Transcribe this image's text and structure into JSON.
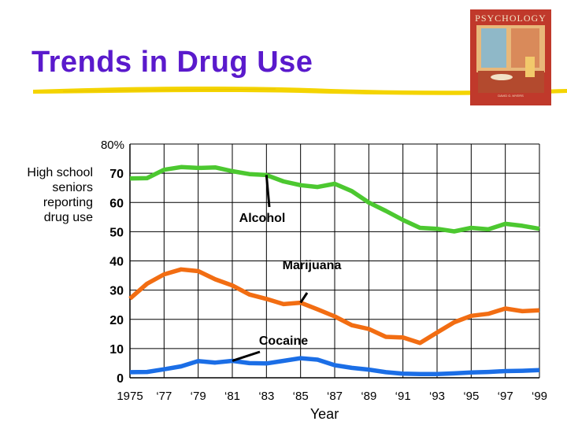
{
  "slide": {
    "title": "Trends in Drug Use",
    "underline_color": "#f4d400"
  },
  "book": {
    "cover_title": "PSYCHOLOGY",
    "cover_author": "DAVID G. MYERS",
    "cover_color": "#c0392b"
  },
  "chart_data": {
    "type": "line",
    "title": "",
    "ylabel_lines": [
      "High school",
      "seniors",
      "reporting",
      "drug use"
    ],
    "xlabel": "Year",
    "x": [
      1975,
      1976,
      1977,
      1978,
      1979,
      1980,
      1981,
      1982,
      1983,
      1984,
      1985,
      1986,
      1987,
      1988,
      1989,
      1990,
      1991,
      1992,
      1993,
      1994,
      1995,
      1996,
      1997,
      1998,
      1999
    ],
    "xlim": [
      1975,
      1999
    ],
    "ylim": [
      0,
      80
    ],
    "x_ticks": [
      {
        "value": 1975,
        "label": "1975"
      },
      {
        "value": 1977,
        "label": "‘77"
      },
      {
        "value": 1979,
        "label": "‘79"
      },
      {
        "value": 1981,
        "label": "‘81"
      },
      {
        "value": 1983,
        "label": "‘83"
      },
      {
        "value": 1985,
        "label": "‘85"
      },
      {
        "value": 1987,
        "label": "‘87"
      },
      {
        "value": 1989,
        "label": "‘89"
      },
      {
        "value": 1991,
        "label": "‘91"
      },
      {
        "value": 1993,
        "label": "‘93"
      },
      {
        "value": 1995,
        "label": "‘95"
      },
      {
        "value": 1997,
        "label": "‘97"
      },
      {
        "value": 1999,
        "label": "‘99"
      }
    ],
    "y_ticks": [
      {
        "value": 0,
        "label": "0"
      },
      {
        "value": 10,
        "label": "10"
      },
      {
        "value": 20,
        "label": "20"
      },
      {
        "value": 30,
        "label": "30"
      },
      {
        "value": 40,
        "label": "40"
      },
      {
        "value": 50,
        "label": "50"
      },
      {
        "value": 60,
        "label": "60"
      },
      {
        "value": 70,
        "label": "70"
      },
      {
        "value": 80,
        "label": "80%"
      }
    ],
    "grid": {
      "horizontal": true,
      "vertical": true
    },
    "series": [
      {
        "name": "Alcohol",
        "color": "#4cc830",
        "values": [
          68.2,
          68.3,
          71.2,
          72.1,
          71.8,
          72.0,
          70.7,
          69.7,
          69.4,
          67.2,
          65.9,
          65.3,
          66.4,
          63.9,
          60.0,
          57.1,
          54.0,
          51.3,
          51.0,
          50.1,
          51.3,
          50.8,
          52.7,
          52.0,
          51.0
        ]
      },
      {
        "name": "Marijuana",
        "color": "#f26d12",
        "values": [
          27.1,
          32.2,
          35.4,
          37.1,
          36.5,
          33.7,
          31.6,
          28.5,
          27.0,
          25.2,
          25.7,
          23.4,
          21.0,
          18.0,
          16.7,
          14.0,
          13.8,
          11.9,
          15.5,
          19.0,
          21.2,
          21.9,
          23.7,
          22.8,
          23.1
        ]
      },
      {
        "name": "Cocaine",
        "color": "#1b6ee6",
        "values": [
          1.9,
          2.0,
          2.9,
          3.9,
          5.7,
          5.2,
          5.8,
          5.0,
          4.9,
          5.8,
          6.7,
          6.2,
          4.3,
          3.4,
          2.8,
          1.9,
          1.4,
          1.3,
          1.3,
          1.5,
          1.8,
          2.0,
          2.3,
          2.4,
          2.6
        ]
      }
    ],
    "annotations": [
      {
        "text": "Alcohol",
        "series": "Alcohol"
      },
      {
        "text": "Marijuana",
        "series": "Marijuana"
      },
      {
        "text": "Cocaine",
        "series": "Cocaine"
      }
    ],
    "background": "#ffffff",
    "grid_color": "#000000"
  }
}
